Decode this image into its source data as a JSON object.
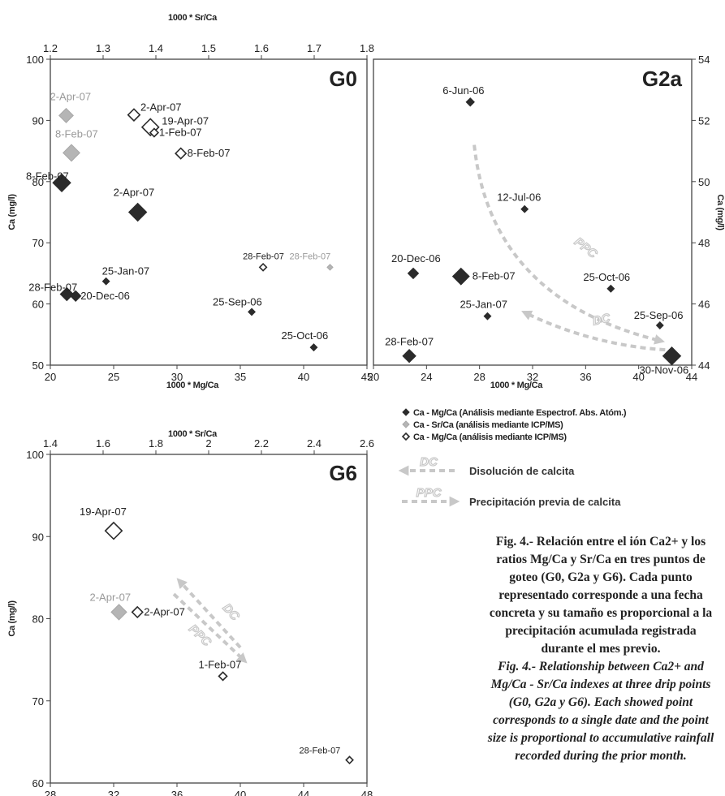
{
  "chart_data": [
    {
      "panel": "G0",
      "type": "scatter",
      "title": "G0",
      "xlabel": "1000 * Mg/Ca",
      "x2label": "1000 * Sr/Ca",
      "ylabel": "Ca (mg/l)",
      "xlim": [
        20,
        45
      ],
      "xticks": [
        20,
        25,
        30,
        35,
        40,
        45
      ],
      "x2lim": [
        1.2,
        1.8
      ],
      "x2ticks": [
        "1.2",
        "1.3",
        "1.4",
        "1.5",
        "1.6",
        "1.7",
        "1.8"
      ],
      "ylim": [
        50,
        100
      ],
      "yticks": [
        50,
        60,
        70,
        80,
        90,
        100
      ],
      "series": [
        {
          "name": "Ca - Mg/Ca (Análisis mediante Espectrof. Abs. Atóm.)",
          "marker": "filled-dark",
          "axis": "Mg/Ca",
          "points": [
            {
              "label": "8-Feb-07",
              "x": 20.9,
              "y": 79.8,
              "size": 12
            },
            {
              "label": "2-Apr-07",
              "x": 26.9,
              "y": 75.0,
              "size": 12
            },
            {
              "label": "25-Jan-07",
              "x": 24.4,
              "y": 63.7,
              "size": 3
            },
            {
              "label": "28-Feb-07",
              "x": 21.3,
              "y": 61.6,
              "size": 8
            },
            {
              "label": "20-Dec-06",
              "x": 22.0,
              "y": 61.3,
              "size": 6
            },
            {
              "label": "25-Sep-06",
              "x": 35.9,
              "y": 58.7,
              "size": 3
            },
            {
              "label": "25-Oct-06",
              "x": 40.8,
              "y": 52.9,
              "size": 3
            }
          ]
        },
        {
          "name": "Ca - Sr/Ca (análisis mediante ICP/MS)",
          "marker": "filled-gray",
          "axis": "Sr/Ca",
          "points": [
            {
              "label": "2-Apr-07",
              "x": 1.23,
              "y": 90.8,
              "size": 9
            },
            {
              "label": "8-Feb-07",
              "x": 1.24,
              "y": 84.7,
              "size": 11
            },
            {
              "label": "28-Feb-07",
              "x": 1.73,
              "y": 66.0,
              "size": 2
            }
          ]
        },
        {
          "name": "Ca - Mg/Ca (análisis mediante ICP/MS)",
          "marker": "open",
          "axis": "Mg/Ca",
          "points": [
            {
              "label": "2-Apr-07",
              "x": 26.6,
              "y": 90.9,
              "size": 7
            },
            {
              "label": "19-Apr-07",
              "x": 27.9,
              "y": 88.9,
              "size": 11
            },
            {
              "label": "1-Feb-07",
              "x": 28.2,
              "y": 88.0,
              "size": 4
            },
            {
              "label": "8-Feb-07",
              "x": 30.3,
              "y": 84.6,
              "size": 6
            },
            {
              "label": "28-Feb-07",
              "x": 36.8,
              "y": 66.0,
              "size": 3
            }
          ]
        }
      ]
    },
    {
      "panel": "G2a",
      "type": "scatter",
      "title": "G2a",
      "xlabel": "1000 * Mg/Ca",
      "ylabel": "Ca (mg/l)",
      "xlim": [
        20,
        44
      ],
      "xticks": [
        20,
        24,
        28,
        32,
        36,
        40,
        44
      ],
      "ylim": [
        44,
        54
      ],
      "yticks": [
        44,
        46,
        48,
        50,
        52,
        54
      ],
      "series": [
        {
          "name": "Ca - Mg/Ca (Análisis mediante Espectrof. Abs. Atóm.)",
          "marker": "filled-dark",
          "axis": "Mg/Ca",
          "points": [
            {
              "label": "6-Jun-06",
              "x": 27.3,
              "y": 52.6,
              "size": 4
            },
            {
              "label": "12-Jul-06",
              "x": 31.4,
              "y": 49.1,
              "size": 3
            },
            {
              "label": "20-Dec-06",
              "x": 23.0,
              "y": 47.0,
              "size": 6
            },
            {
              "label": "8-Feb-07",
              "x": 26.6,
              "y": 46.9,
              "size": 11
            },
            {
              "label": "25-Oct-06",
              "x": 37.9,
              "y": 46.5,
              "size": 3
            },
            {
              "label": "25-Jan-07",
              "x": 28.6,
              "y": 45.6,
              "size": 3
            },
            {
              "label": "25-Sep-06",
              "x": 41.6,
              "y": 45.3,
              "size": 3
            },
            {
              "label": "28-Feb-07",
              "x": 22.7,
              "y": 44.3,
              "size": 8
            },
            {
              "label": "30-Nov-06",
              "x": 42.5,
              "y": 44.3,
              "size": 12
            }
          ]
        }
      ],
      "arrows": [
        {
          "label": "PPC",
          "from": [
            27.6,
            51.2
          ],
          "to": [
            41.6,
            44.8
          ]
        },
        {
          "label": "DC",
          "from": [
            42.0,
            44.5
          ],
          "to": [
            31.5,
            45.7
          ]
        }
      ]
    },
    {
      "panel": "G6",
      "type": "scatter",
      "title": "G6",
      "xlabel": "1000 * Mg/Ca",
      "x2label": "1000 * Sr/Ca",
      "ylabel": "Ca (mg/l)",
      "xlim": [
        28,
        48
      ],
      "xticks": [
        28,
        32,
        36,
        40,
        44,
        48
      ],
      "x2lim": [
        1.4,
        2.6
      ],
      "x2ticks": [
        "1.4",
        "1.6",
        "1.8",
        "2",
        "2.2",
        "2.4",
        "2.6"
      ],
      "ylim": [
        60,
        100
      ],
      "yticks": [
        60,
        70,
        80,
        90,
        100
      ],
      "series": [
        {
          "name": "Ca - Sr/Ca (análisis mediante ICP/MS)",
          "marker": "filled-gray",
          "axis": "Sr/Ca",
          "points": [
            {
              "label": "2-Apr-07",
              "x": 1.66,
              "y": 80.8,
              "size": 10
            }
          ]
        },
        {
          "name": "Ca - Mg/Ca (análisis mediante ICP/MS)",
          "marker": "open",
          "axis": "Mg/Ca",
          "points": [
            {
              "label": "19-Apr-07",
              "x": 32.0,
              "y": 90.7,
              "size": 11
            },
            {
              "label": "2-Apr-07",
              "x": 33.5,
              "y": 80.8,
              "size": 6
            },
            {
              "label": "1-Feb-07",
              "x": 38.9,
              "y": 73.0,
              "size": 4
            },
            {
              "label": "28-Feb-07",
              "x": 46.9,
              "y": 62.8,
              "size": 3
            }
          ]
        }
      ],
      "arrows": [
        {
          "label": "DC",
          "from": [
            40.0,
            76.5
          ],
          "to": [
            36.2,
            84.5
          ]
        },
        {
          "label": "PPC",
          "from": [
            35.8,
            83.0
          ],
          "to": [
            40.2,
            75.0
          ]
        }
      ]
    }
  ],
  "legend": {
    "series": [
      {
        "marker": "filled-dark",
        "text": "Ca - Mg/Ca (Análisis mediante Espectrof. Abs. Atóm.)"
      },
      {
        "marker": "filled-gray",
        "text": "Ca - Sr/Ca (análisis mediante ICP/MS)"
      },
      {
        "marker": "open",
        "text": "Ca - Mg/Ca (análisis mediante ICP/MS)"
      }
    ],
    "arrows": [
      {
        "arrow_label": "DC",
        "text": "Disolución de calcita"
      },
      {
        "arrow_label": "PPC",
        "text": "Precipitación previa de calcita"
      }
    ]
  },
  "caption_es": "Fig. 4.- Relación entre el ión Ca2+ y los ratios Mg/Ca y Sr/Ca en tres puntos de goteo (G0, G2a y G6). Cada punto representado corresponde a una fecha concreta y su tamaño es proporcional a la precipitación acumulada registrada durante el mes previo.",
  "caption_en": "Fig. 4.- Relationship between Ca2+ and Mg/Ca - Sr/Ca indexes at three drip points (G0, G2a y G6). Each showed point corresponds to a single date and the point size is proportional to accumulative rainfall recorded during the prior month.",
  "colors": {
    "dark": "#2b2b2b",
    "gray": "#b5b5b5",
    "open_stroke": "#2b2b2b",
    "arrow": "#c8c8c8",
    "axis": "#444444"
  }
}
